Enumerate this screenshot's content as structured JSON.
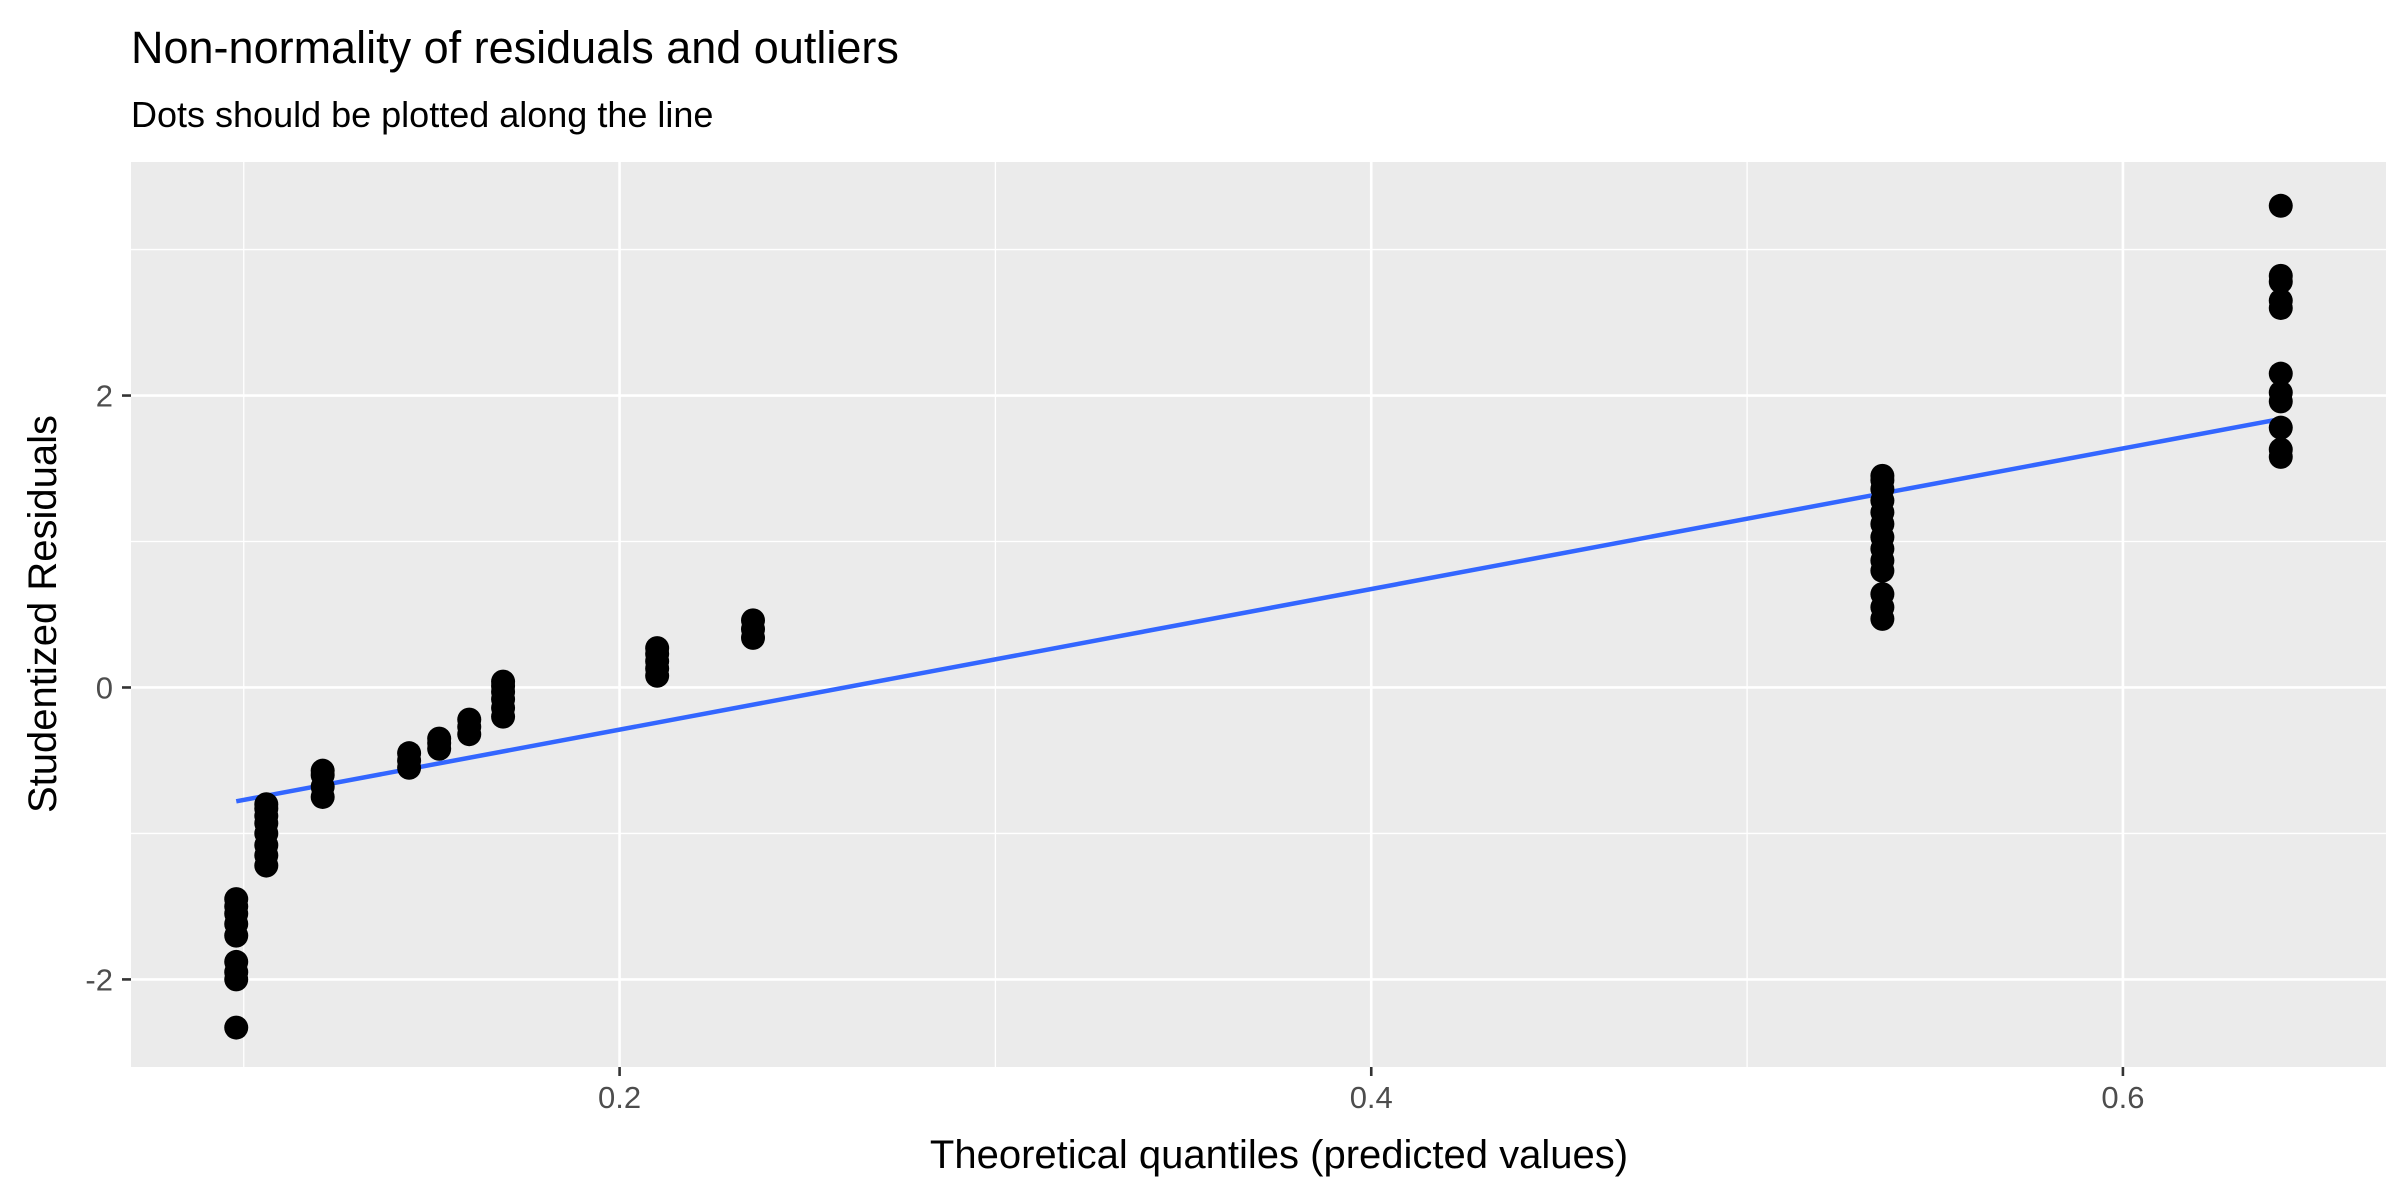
{
  "chart_data": {
    "type": "scatter",
    "title": "Non-normality of residuals and outliers",
    "subtitle": "Dots should be plotted along the line",
    "xlabel": "Theoretical quantiles (predicted values)",
    "ylabel": "Studentized Residuals",
    "xlim": [
      0.07,
      0.67
    ],
    "ylim": [
      -2.6,
      3.6
    ],
    "x_ticks": [
      0.2,
      0.4,
      0.6
    ],
    "x_tick_labels": [
      "0.2",
      "0.4",
      "0.6"
    ],
    "y_ticks": [
      -2,
      0,
      2
    ],
    "y_tick_labels": [
      "-2",
      "0",
      "2"
    ],
    "grid": true,
    "legend": "none",
    "colors": {
      "panel_background": "#EBEBEB",
      "grid": "#FFFFFF",
      "points": "#000000",
      "line": "#3366FF"
    },
    "series": [
      {
        "type": "scatter",
        "x": [
          0.098,
          0.098,
          0.098,
          0.098,
          0.098,
          0.098,
          0.098,
          0.098,
          0.098,
          0.106,
          0.106,
          0.106,
          0.106,
          0.106,
          0.106,
          0.106,
          0.106,
          0.121,
          0.121,
          0.121,
          0.121,
          0.144,
          0.144,
          0.144,
          0.152,
          0.152,
          0.152,
          0.16,
          0.16,
          0.16,
          0.169,
          0.169,
          0.169,
          0.169,
          0.169,
          0.169,
          0.21,
          0.21,
          0.21,
          0.21,
          0.21,
          0.2355,
          0.2355,
          0.2355,
          0.536,
          0.536,
          0.536,
          0.536,
          0.536,
          0.536,
          0.536,
          0.536,
          0.536,
          0.536,
          0.536,
          0.536,
          0.536,
          0.642,
          0.642,
          0.642,
          0.642,
          0.642,
          0.642,
          0.642,
          0.642,
          0.642,
          0.642,
          0.642
        ],
        "y": [
          -2.33,
          -2.0,
          -1.95,
          -1.88,
          -1.7,
          -1.62,
          -1.55,
          -1.5,
          -1.45,
          -1.22,
          -1.15,
          -1.08,
          -1.0,
          -0.93,
          -0.88,
          -0.83,
          -0.8,
          -0.75,
          -0.68,
          -0.6,
          -0.57,
          -0.55,
          -0.5,
          -0.45,
          -0.42,
          -0.38,
          -0.35,
          -0.32,
          -0.27,
          -0.22,
          -0.2,
          -0.14,
          -0.08,
          -0.03,
          0.01,
          0.04,
          0.08,
          0.13,
          0.18,
          0.23,
          0.27,
          0.34,
          0.4,
          0.46,
          0.47,
          0.55,
          0.64,
          0.8,
          0.87,
          0.95,
          1.03,
          1.12,
          1.2,
          1.28,
          1.36,
          1.42,
          1.45,
          1.58,
          1.63,
          1.78,
          1.96,
          2.02,
          2.15,
          2.6,
          2.65,
          2.78,
          2.82,
          3.3
        ]
      },
      {
        "type": "line",
        "x": [
          0.098,
          0.642
        ],
        "y": [
          -0.78,
          1.84
        ]
      }
    ]
  }
}
